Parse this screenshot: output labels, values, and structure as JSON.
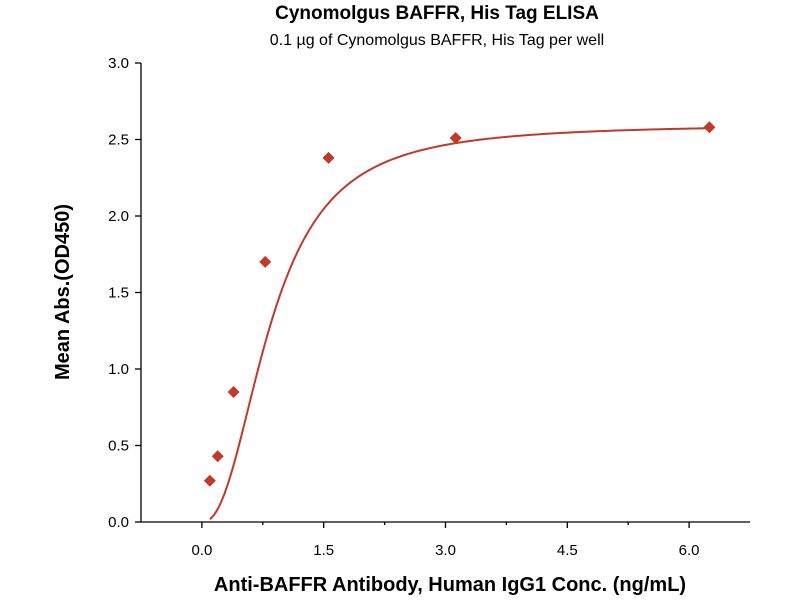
{
  "chart_data": {
    "type": "scatter",
    "title": "Cynomolgus BAFFR, His Tag ELISA",
    "subtitle": "0.1 µg of Cynomolgus BAFFR, His Tag per well",
    "xlabel": "Anti-BAFFR Antibody, Human IgG1 Conc. (ng/mL)",
    "ylabel": "Mean Abs.(OD450)",
    "xlim": [
      -0.75,
      6.75
    ],
    "ylim": [
      0,
      3.0
    ],
    "x_ticks": [
      "0.0",
      "1.5",
      "3.0",
      "4.5",
      "6.0"
    ],
    "y_ticks": [
      "0.0",
      "0.5",
      "1.0",
      "1.5",
      "2.0",
      "2.5",
      "3.0"
    ],
    "grid": false,
    "series": [
      {
        "x": [
          0.098,
          0.195,
          0.39,
          0.78,
          1.56,
          3.125,
          6.25
        ],
        "y": [
          0.27,
          0.43,
          0.85,
          1.7,
          2.38,
          2.51,
          2.58
        ],
        "marker": "diamond",
        "color": "#c0392b",
        "fit": "4PL",
        "fit_params": {
          "bottom": 0.0,
          "top": 2.6,
          "ec50": 0.85,
          "hill": 2.3
        }
      }
    ]
  }
}
